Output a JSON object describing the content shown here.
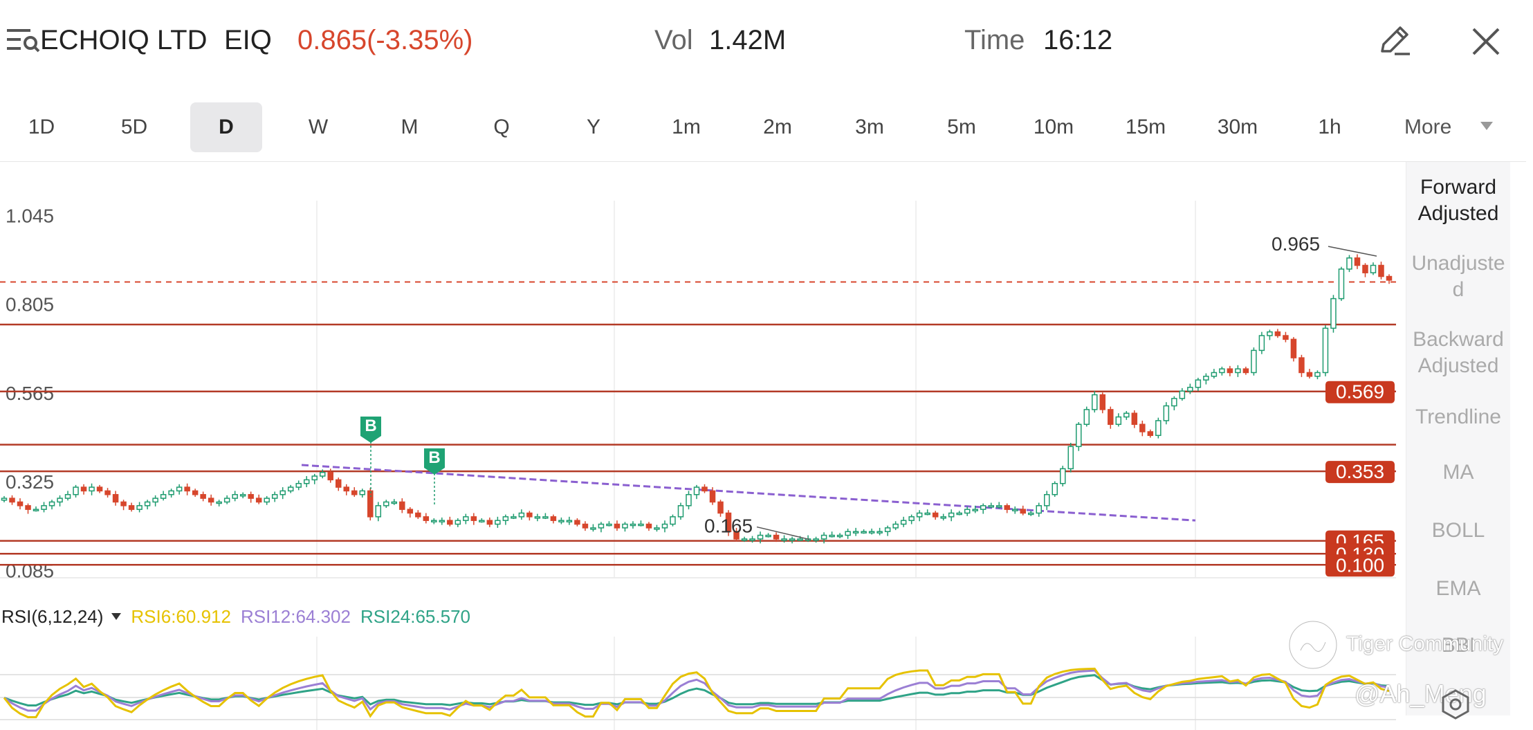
{
  "header": {
    "stock_name": "ECHOIQ LTD",
    "stock_code": "EIQ",
    "price": "0.865(-3.35%)",
    "vol_label": "Vol",
    "vol_value": "1.42M",
    "time_label": "Time",
    "time_value": "16:12",
    "menu_icon": "list-search-icon",
    "edit_icon": "pencil-icon",
    "close_icon": "close-icon"
  },
  "periods": {
    "items": [
      "1D",
      "5D",
      "D",
      "W",
      "M",
      "Q",
      "Y",
      "1m",
      "2m",
      "3m",
      "5m",
      "10m",
      "15m",
      "30m",
      "1h"
    ],
    "active": "D",
    "more_label": "More"
  },
  "side_panel": {
    "items": [
      {
        "label": "Forward Adjusted",
        "active": true
      },
      {
        "label": "Unadjusted",
        "active": false
      },
      {
        "label": "Backward Adjusted",
        "active": false
      },
      {
        "label": "Trendline",
        "active": false
      },
      {
        "label": "MA",
        "active": false
      },
      {
        "label": "BOLL",
        "active": false
      },
      {
        "label": "EMA",
        "active": false
      },
      {
        "label": "BBI",
        "active": false
      }
    ]
  },
  "chart_data": {
    "type": "candlestick",
    "y_axis_labels": [
      "1.045",
      "0.805",
      "0.565",
      "0.325",
      "0.085"
    ],
    "ylim": [
      0.065,
      1.085
    ],
    "current_price": 0.865,
    "high_annotation": {
      "label": "0.965",
      "value": 0.965
    },
    "low_annotation": {
      "label": "0.165",
      "value": 0.165
    },
    "horizontal_levels": [
      {
        "value": 0.75,
        "label": ""
      },
      {
        "value": 0.569,
        "label": "0.569"
      },
      {
        "value": 0.425,
        "label": ""
      },
      {
        "value": 0.353,
        "label": "0.353"
      },
      {
        "value": 0.165,
        "label": "0.165"
      },
      {
        "value": 0.13,
        "label": "0.130"
      },
      {
        "value": 0.1,
        "label": "0.100"
      }
    ],
    "trendline": {
      "start_value": 0.37,
      "end_value": 0.22
    },
    "buy_markers": [
      "B",
      "B"
    ],
    "closes": [
      0.28,
      0.27,
      0.26,
      0.25,
      0.25,
      0.26,
      0.27,
      0.28,
      0.29,
      0.31,
      0.3,
      0.31,
      0.3,
      0.29,
      0.27,
      0.26,
      0.25,
      0.26,
      0.27,
      0.28,
      0.29,
      0.3,
      0.31,
      0.3,
      0.29,
      0.28,
      0.27,
      0.27,
      0.28,
      0.29,
      0.29,
      0.28,
      0.27,
      0.28,
      0.29,
      0.3,
      0.31,
      0.32,
      0.33,
      0.34,
      0.35,
      0.33,
      0.31,
      0.3,
      0.29,
      0.3,
      0.23,
      0.26,
      0.27,
      0.27,
      0.25,
      0.24,
      0.23,
      0.22,
      0.22,
      0.22,
      0.21,
      0.22,
      0.23,
      0.22,
      0.22,
      0.21,
      0.22,
      0.23,
      0.23,
      0.24,
      0.23,
      0.23,
      0.23,
      0.22,
      0.22,
      0.22,
      0.21,
      0.2,
      0.2,
      0.21,
      0.21,
      0.2,
      0.21,
      0.21,
      0.21,
      0.2,
      0.2,
      0.21,
      0.23,
      0.26,
      0.29,
      0.31,
      0.3,
      0.27,
      0.24,
      0.19,
      0.17,
      0.17,
      0.17,
      0.18,
      0.18,
      0.17,
      0.17,
      0.17,
      0.17,
      0.17,
      0.17,
      0.18,
      0.18,
      0.18,
      0.19,
      0.19,
      0.19,
      0.19,
      0.19,
      0.2,
      0.21,
      0.22,
      0.23,
      0.24,
      0.24,
      0.23,
      0.23,
      0.24,
      0.24,
      0.25,
      0.25,
      0.26,
      0.26,
      0.26,
      0.25,
      0.25,
      0.24,
      0.24,
      0.26,
      0.29,
      0.32,
      0.36,
      0.42,
      0.48,
      0.52,
      0.56,
      0.52,
      0.48,
      0.5,
      0.51,
      0.48,
      0.46,
      0.45,
      0.49,
      0.53,
      0.55,
      0.57,
      0.58,
      0.6,
      0.61,
      0.62,
      0.63,
      0.62,
      0.63,
      0.62,
      0.68,
      0.72,
      0.73,
      0.72,
      0.71,
      0.66,
      0.62,
      0.61,
      0.62,
      0.74,
      0.82,
      0.9,
      0.93,
      0.91,
      0.89,
      0.91,
      0.88,
      0.87
    ]
  },
  "rsi": {
    "label": "RSI(6,12,24)",
    "rsi6_label": "RSI6:60.912",
    "rsi12_label": "RSI12:64.302",
    "rsi24_label": "RSI24:65.570",
    "colors": {
      "rsi6": "#e6c200",
      "rsi12": "#9b7fd4",
      "rsi24": "#2fa387"
    }
  },
  "watermark": {
    "brand": "Tiger Community",
    "handle": "@Ah_Meng"
  }
}
